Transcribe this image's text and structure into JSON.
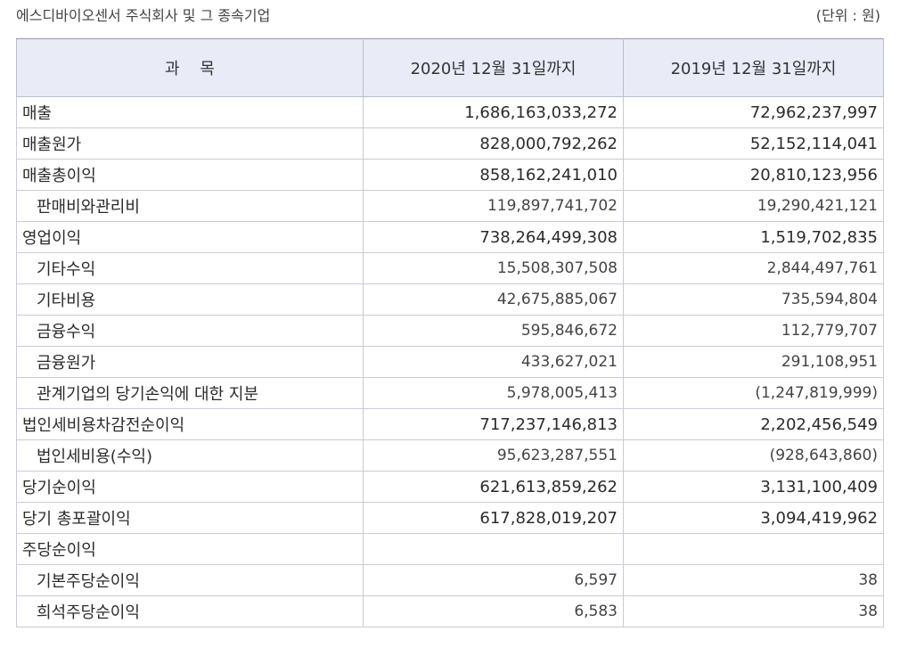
{
  "caption": {
    "company": "에스디바이오센서 주식회사 및 그 종속기업",
    "unit": "(단위 : 원)"
  },
  "table": {
    "headers": {
      "item": "과    목",
      "col_2020": "2020년 12월 31일까지",
      "col_2019": "2019년 12월 31일까지"
    },
    "rows": [
      {
        "label": "매출",
        "v2020": "1,686,163,033,272",
        "v2019": "72,962,237,997",
        "level": "main"
      },
      {
        "label": "매출원가",
        "v2020": "828,000,792,262",
        "v2019": "52,152,114,041",
        "level": "main"
      },
      {
        "label": "매출총이익",
        "v2020": "858,162,241,010",
        "v2019": "20,810,123,956",
        "level": "main"
      },
      {
        "label": "판매비와관리비",
        "v2020": "119,897,741,702",
        "v2019": "19,290,421,121",
        "level": "sub"
      },
      {
        "label": "영업이익",
        "v2020": "738,264,499,308",
        "v2019": "1,519,702,835",
        "level": "main"
      },
      {
        "label": "기타수익",
        "v2020": "15,508,307,508",
        "v2019": "2,844,497,761",
        "level": "sub"
      },
      {
        "label": "기타비용",
        "v2020": "42,675,885,067",
        "v2019": "735,594,804",
        "level": "sub"
      },
      {
        "label": "금융수익",
        "v2020": "595,846,672",
        "v2019": "112,779,707",
        "level": "sub"
      },
      {
        "label": "금융원가",
        "v2020": "433,627,021",
        "v2019": "291,108,951",
        "level": "sub"
      },
      {
        "label": "관계기업의 당기손익에 대한 지분",
        "v2020": "5,978,005,413",
        "v2019": "(1,247,819,999)",
        "level": "sub"
      },
      {
        "label": "법인세비용차감전순이익",
        "v2020": "717,237,146,813",
        "v2019": "2,202,456,549",
        "level": "main"
      },
      {
        "label": "법인세비용(수익)",
        "v2020": "95,623,287,551",
        "v2019": "(928,643,860)",
        "level": "sub"
      },
      {
        "label": "당기순이익",
        "v2020": "621,613,859,262",
        "v2019": "3,131,100,409",
        "level": "main"
      },
      {
        "label": "당기 총포괄이익",
        "v2020": "617,828,019,207",
        "v2019": "3,094,419,962",
        "level": "main"
      },
      {
        "label": "주당순이익",
        "v2020": "",
        "v2019": "",
        "level": "main"
      },
      {
        "label": "기본주당순이익",
        "v2020": "6,597",
        "v2019": "38",
        "level": "sub"
      },
      {
        "label": "희석주당순이익",
        "v2020": "6,583",
        "v2019": "38",
        "level": "sub"
      }
    ]
  }
}
